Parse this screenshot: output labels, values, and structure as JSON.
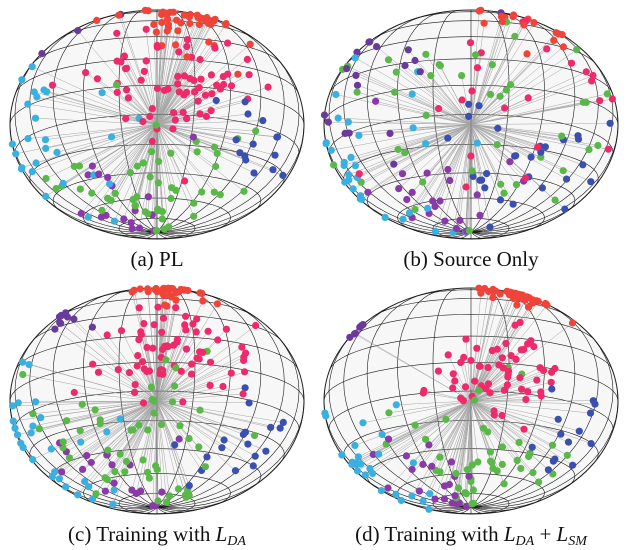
{
  "figure": {
    "panels": [
      {
        "id": "pl",
        "caption": {
          "prefix": "(a) PL",
          "math": "",
          "term1_sub": "",
          "plus": "",
          "term2_sub": ""
        },
        "clusters": [
          {
            "color": "#f0443a",
            "lat": 55,
            "lon": 20,
            "n": 60,
            "spread": 18
          },
          {
            "color": "#ee2a6a",
            "lat": 0,
            "lon": 10,
            "n": 70,
            "spread": 14
          },
          {
            "color": "#3ab0e0",
            "lat": -20,
            "lon": -80,
            "n": 40,
            "spread": 25
          },
          {
            "color": "#5ab848",
            "lat": -45,
            "lon": -5,
            "n": 50,
            "spread": 22
          },
          {
            "color": "#6a3a9a",
            "lat": 60,
            "lon": -70,
            "n": 20,
            "spread": 15
          },
          {
            "color": "#3a50b0",
            "lat": -25,
            "lon": 45,
            "n": 15,
            "spread": 10
          },
          {
            "color": "#8a3aa8",
            "lat": -60,
            "lon": -40,
            "n": 20,
            "spread": 20
          }
        ]
      },
      {
        "id": "source-only",
        "caption": {
          "prefix": "(b) Source Only",
          "math": "",
          "term1_sub": "",
          "plus": "",
          "term2_sub": ""
        },
        "clusters": [
          {
            "color": "#f0443a",
            "lat": 60,
            "lon": 40,
            "n": 30,
            "spread": 20
          },
          {
            "color": "#ee2a6a",
            "lat": 10,
            "lon": 30,
            "n": 25,
            "spread": 25
          },
          {
            "color": "#3ab0e0",
            "lat": -30,
            "lon": -80,
            "n": 40,
            "spread": 30
          },
          {
            "color": "#5ab848",
            "lat": -10,
            "lon": 0,
            "n": 45,
            "spread": 35
          },
          {
            "color": "#6a3a9a",
            "lat": 30,
            "lon": -70,
            "n": 35,
            "spread": 30
          },
          {
            "color": "#3a50b0",
            "lat": -40,
            "lon": 40,
            "n": 30,
            "spread": 20
          },
          {
            "color": "#8a3aa8",
            "lat": -55,
            "lon": -30,
            "n": 25,
            "spread": 25
          }
        ]
      },
      {
        "id": "training-da",
        "caption": {
          "prefix": "(c) Training with ",
          "math": "L",
          "term1_sub": "DA",
          "plus": "",
          "term2_sub": ""
        },
        "clusters": [
          {
            "color": "#f0443a",
            "lat": 65,
            "lon": 15,
            "n": 45,
            "spread": 14
          },
          {
            "color": "#ee2a6a",
            "lat": 5,
            "lon": 5,
            "n": 70,
            "spread": 14
          },
          {
            "color": "#3ab0e0",
            "lat": -25,
            "lon": -85,
            "n": 35,
            "spread": 20
          },
          {
            "color": "#5ab848",
            "lat": -40,
            "lon": -10,
            "n": 55,
            "spread": 24
          },
          {
            "color": "#6a3a9a",
            "lat": 40,
            "lon": -70,
            "n": 20,
            "spread": 18
          },
          {
            "color": "#3a50b0",
            "lat": -35,
            "lon": 45,
            "n": 18,
            "spread": 12
          },
          {
            "color": "#8a3aa8",
            "lat": -55,
            "lon": -35,
            "n": 18,
            "spread": 18
          }
        ]
      },
      {
        "id": "training-da-sm",
        "caption": {
          "prefix": "(d) Training with ",
          "math": "L",
          "term1_sub": "DA",
          "plus": " + ",
          "term2_sub": "SM"
        },
        "clusters": [
          {
            "color": "#f0443a",
            "lat": 55,
            "lon": 35,
            "n": 50,
            "spread": 12
          },
          {
            "color": "#ee2a6a",
            "lat": -5,
            "lon": 10,
            "n": 60,
            "spread": 12
          },
          {
            "color": "#3ab0e0",
            "lat": -35,
            "lon": -85,
            "n": 30,
            "spread": 18
          },
          {
            "color": "#5ab848",
            "lat": -50,
            "lon": 5,
            "n": 45,
            "spread": 18
          },
          {
            "color": "#6a3a9a",
            "lat": 45,
            "lon": -75,
            "n": 12,
            "spread": 10
          },
          {
            "color": "#3a50b0",
            "lat": -35,
            "lon": 50,
            "n": 14,
            "spread": 10
          },
          {
            "color": "#8a3aa8",
            "lat": -65,
            "lon": -40,
            "n": 22,
            "spread": 16
          }
        ]
      }
    ]
  }
}
